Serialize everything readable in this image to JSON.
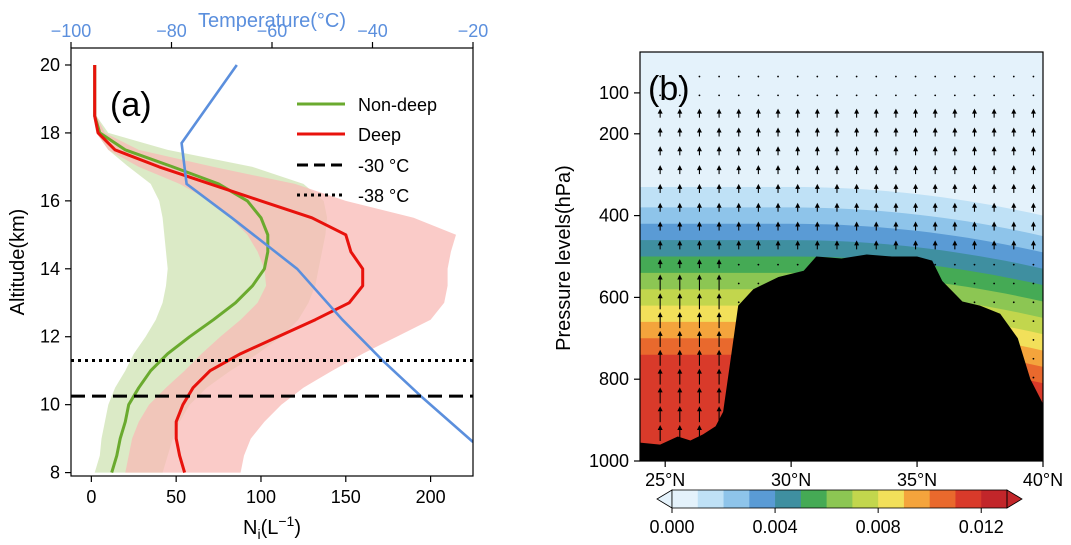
{
  "chart_data": [
    {
      "type": "line",
      "panel_label": "(a)",
      "xlabel_main": "N",
      "xlabel_sub": "i",
      "xlabel_rest": "(L",
      "xlabel_sup": "−1",
      "xlabel_close": ")",
      "ylabel": "Altitude(km)",
      "top_xlabel": "Temperature(°C)",
      "xlim": [
        -12,
        225
      ],
      "ylim": [
        7.9,
        20.5
      ],
      "top_xlim": [
        -100,
        -20
      ],
      "xticks": [
        "0",
        "50",
        "100",
        "150",
        "200"
      ],
      "xtick_values": [
        0,
        50,
        100,
        150,
        200
      ],
      "yticks": [
        "8",
        "10",
        "12",
        "14",
        "16",
        "18",
        "20"
      ],
      "ytick_values": [
        8,
        10,
        12,
        14,
        16,
        18,
        20
      ],
      "top_xticks": [
        "−100",
        "−80",
        "−60",
        "−40",
        "−20"
      ],
      "top_xtick_values": [
        -100,
        -80,
        -60,
        -40,
        -20
      ],
      "colors": {
        "nondeep": "#6aaa2e",
        "deep": "#e8120c",
        "temp": "#5b8fdd",
        "nondeep_fill": "#cfe3b3",
        "deep_fill": "#f8b9b6",
        "top_axis_text": "#5b8fdd"
      },
      "legend_position": "upper right",
      "legend": [
        {
          "label": "Non-deep",
          "style": "green"
        },
        {
          "label": "Deep",
          "style": "red"
        },
        {
          "label": "-30 °C",
          "style": "dashed"
        },
        {
          "label": "-38 °C",
          "style": "dotted"
        }
      ],
      "series": [
        {
          "name": "Non-deep",
          "y": [
            8,
            8.5,
            9,
            9.5,
            10,
            10.5,
            11,
            11.5,
            12,
            12.5,
            13,
            13.5,
            14,
            14.5,
            15,
            15.5,
            16,
            16.5,
            17,
            17.5,
            18,
            18.5,
            19,
            19.5,
            20
          ],
          "x": [
            12,
            15,
            17,
            20,
            22,
            28,
            35,
            45,
            58,
            72,
            85,
            95,
            102,
            104,
            104,
            100,
            92,
            75,
            48,
            20,
            5,
            2,
            2,
            2,
            2
          ],
          "lower": [
            2,
            5,
            6,
            8,
            10,
            14,
            20,
            25,
            32,
            38,
            42,
            44,
            45,
            44,
            43,
            42,
            40,
            35,
            22,
            10,
            3,
            1,
            1,
            1,
            1
          ],
          "upper": [
            42,
            45,
            48,
            52,
            58,
            68,
            82,
            98,
            112,
            122,
            128,
            132,
            134,
            136,
            138,
            139,
            137,
            125,
            95,
            45,
            10,
            3,
            3,
            3,
            3
          ]
        },
        {
          "name": "Deep",
          "y": [
            8,
            8.5,
            9,
            9.5,
            10,
            10.5,
            11,
            11.5,
            12,
            12.5,
            13,
            13.5,
            14,
            14.5,
            15,
            15.5,
            16,
            16.5,
            17,
            17.5,
            18,
            18.5,
            19,
            19.5,
            20
          ],
          "x": [
            55,
            52,
            50,
            50,
            54,
            60,
            70,
            88,
            110,
            132,
            152,
            160,
            160,
            153,
            150,
            130,
            100,
            70,
            40,
            14,
            4,
            2,
            2,
            2,
            2
          ],
          "lower": [
            20,
            22,
            24,
            28,
            34,
            44,
            55,
            65,
            76,
            88,
            98,
            103,
            102,
            98,
            92,
            82,
            70,
            52,
            28,
            10,
            3,
            1,
            1,
            1,
            1
          ],
          "upper": [
            88,
            90,
            94,
            102,
            112,
            125,
            142,
            160,
            180,
            200,
            208,
            210,
            210,
            212,
            215,
            190,
            150,
            120,
            72,
            28,
            8,
            3,
            3,
            3,
            3
          ]
        }
      ],
      "temperature": {
        "y": [
          8.9,
          10.2,
          11.3,
          12.5,
          14,
          15.5,
          16.5,
          17.7,
          20
        ],
        "t": [
          -20,
          -30,
          -38,
          -46,
          -55,
          -68,
          -77,
          -78,
          -67
        ]
      },
      "hlines": [
        {
          "label": "-30 °C",
          "y": 10.25,
          "style": "dashed"
        },
        {
          "label": "-38 °C",
          "y": 11.3,
          "style": "dotted"
        }
      ]
    },
    {
      "type": "heatmap",
      "panel_label": "(b)",
      "ylabel": "Pressure levels(hPa)",
      "xlabel": "",
      "xlim": [
        24,
        40
      ],
      "ylim": [
        1000,
        0
      ],
      "xticks": [
        "25°N",
        "30°N",
        "35°N",
        "40°N"
      ],
      "xtick_values": [
        25,
        30,
        35,
        40
      ],
      "yticks": [
        "100",
        "200",
        "400",
        "600",
        "800",
        "1000"
      ],
      "ytick_values": [
        100,
        200,
        400,
        600,
        800,
        1000
      ],
      "colorbar": {
        "ticks": [
          "0.000",
          "0.004",
          "0.008",
          "0.012"
        ],
        "tick_values": [
          0,
          0.004,
          0.008,
          0.012
        ],
        "levels": [
          0,
          0.001,
          0.002,
          0.003,
          0.004,
          0.005,
          0.006,
          0.007,
          0.008,
          0.009,
          0.01,
          0.011,
          0.012,
          0.013
        ],
        "colors": [
          "#e4f2fb",
          "#bfe1f6",
          "#8ec4ea",
          "#5a9bd5",
          "#3f8fa0",
          "#45aa55",
          "#8cc653",
          "#c2d64d",
          "#f2e05a",
          "#f4a43c",
          "#e9692d",
          "#d93a2a",
          "#c2262a"
        ]
      },
      "bands": [
        {
          "level_index": 0,
          "p_top": 0,
          "p_bottom": 330
        },
        {
          "level_index": 1,
          "p_top": 330,
          "p_bottom": 380
        },
        {
          "level_index": 2,
          "p_top": 380,
          "p_bottom": 420
        },
        {
          "level_index": 3,
          "p_top": 420,
          "p_bottom": 460
        },
        {
          "level_index": 4,
          "p_top": 460,
          "p_bottom": 500
        },
        {
          "level_index": 5,
          "p_top": 500,
          "p_bottom": 540
        },
        {
          "level_index": 6,
          "p_top": 540,
          "p_bottom": 580
        },
        {
          "level_index": 7,
          "p_top": 580,
          "p_bottom": 620
        },
        {
          "level_index": 8,
          "p_top": 620,
          "p_bottom": 660
        },
        {
          "level_index": 9,
          "p_top": 660,
          "p_bottom": 700
        },
        {
          "level_index": 10,
          "p_top": 700,
          "p_bottom": 740
        },
        {
          "level_index": 11,
          "p_top": 740,
          "p_bottom": 1000
        }
      ],
      "terrain": {
        "lat": [
          24,
          24.8,
          25.5,
          26,
          26.5,
          27,
          27.3,
          27.6,
          27.9,
          28.5,
          29.5,
          30.5,
          31,
          32,
          33,
          34,
          35,
          35.6,
          36,
          36.8,
          37.5,
          38.3,
          39,
          39.5,
          40
        ],
        "p": [
          955,
          960,
          940,
          950,
          935,
          915,
          880,
          750,
          620,
          580,
          550,
          535,
          500,
          505,
          495,
          500,
          500,
          510,
          560,
          610,
          620,
          640,
          700,
          800,
          860
        ]
      }
    }
  ]
}
